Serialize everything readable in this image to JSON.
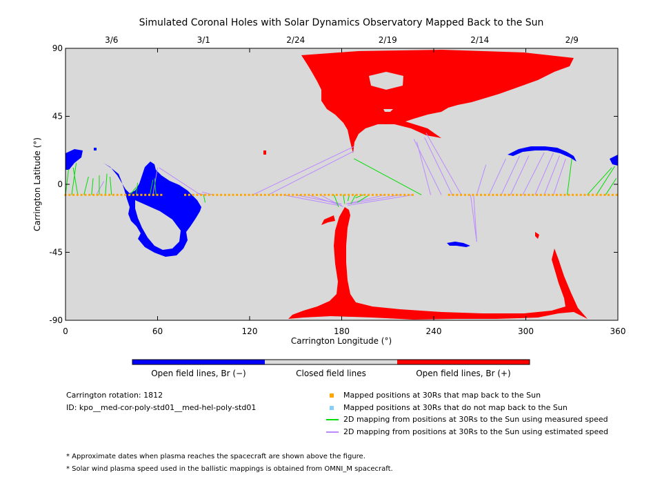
{
  "chart_data": {
    "type": "map",
    "title": "Simulated Coronal Holes with Solar Dynamics Observatory Mapped Back to the Sun",
    "xlabel": "Carrington Longitude (°)",
    "ylabel": "Carrington Latitude (°)",
    "xlim": [
      0,
      360
    ],
    "ylim": [
      -90,
      90
    ],
    "x_ticks": [
      "0",
      "60",
      "120",
      "180",
      "240",
      "300",
      "360"
    ],
    "y_ticks": [
      "90",
      "45",
      "0",
      "-45",
      "-90"
    ],
    "top_axis_dates": [
      {
        "label": "3/6",
        "lon": 30
      },
      {
        "label": "3/1",
        "lon": 90
      },
      {
        "label": "2/24",
        "lon": 150
      },
      {
        "label": "2/19",
        "lon": 210
      },
      {
        "label": "2/14",
        "lon": 270
      },
      {
        "label": "2/9",
        "lon": 330
      }
    ],
    "colors": {
      "background": "#d9d9d9",
      "negative": "#0000ff",
      "positive": "#ff0000",
      "mapped": "#ffa500",
      "not_mapped": "#87cefa",
      "measured_line": "#00dd00",
      "estimated_line": "#bb88ff"
    },
    "mapped_positions_lat": -7,
    "mapped_positions_lon_ranges": [
      [
        0,
        63
      ],
      [
        78,
        228
      ],
      [
        250,
        360
      ]
    ],
    "measured_mappings": [
      [
        0,
        -7,
        2,
        10
      ],
      [
        4,
        -7,
        7,
        14
      ],
      [
        8,
        -7,
        5,
        11
      ],
      [
        12,
        -7,
        15,
        5
      ],
      [
        17,
        -7,
        18,
        4
      ],
      [
        22,
        -7,
        22,
        6
      ],
      [
        26,
        -7,
        27,
        7
      ],
      [
        30,
        -7,
        29,
        5
      ],
      [
        42,
        -7,
        46,
        -2
      ],
      [
        46,
        -7,
        47,
        1
      ],
      [
        55,
        -7,
        57,
        3
      ],
      [
        59,
        -7,
        58,
        4
      ],
      [
        90,
        -7,
        91,
        -12
      ],
      [
        175,
        -7,
        178,
        -15
      ],
      [
        181,
        -7,
        182,
        -13
      ],
      [
        185,
        -7,
        184,
        -11
      ],
      [
        189,
        -7,
        186,
        -13
      ],
      [
        194,
        -7,
        189,
        -9
      ],
      [
        198,
        -7,
        190,
        -12
      ],
      [
        232,
        -7,
        188,
        17
      ],
      [
        327,
        -7,
        330,
        17
      ],
      [
        340,
        -7,
        356,
        11
      ],
      [
        346,
        -7,
        358,
        12
      ],
      [
        352,
        -7,
        359,
        4
      ]
    ],
    "estimated_mappings": [
      [
        20,
        -7,
        25,
        2
      ],
      [
        57,
        -7,
        60,
        11
      ],
      [
        88,
        -7,
        61,
        11
      ],
      [
        92,
        -7,
        86,
        -6
      ],
      [
        96,
        -7,
        89,
        -5
      ],
      [
        122,
        -7,
        188,
        25
      ],
      [
        132,
        -7,
        188,
        22
      ],
      [
        142,
        -7,
        178,
        -14
      ],
      [
        150,
        -7,
        180,
        -13
      ],
      [
        158,
        -7,
        180,
        -14
      ],
      [
        166,
        -7,
        181,
        -15
      ],
      [
        208,
        -7,
        183,
        -13
      ],
      [
        218,
        -7,
        184,
        -13
      ],
      [
        226,
        -7,
        184,
        -14
      ],
      [
        238,
        -7,
        229,
        28
      ],
      [
        245,
        -7,
        227,
        30
      ],
      [
        252,
        -7,
        234,
        31
      ],
      [
        258,
        -7,
        235,
        34
      ],
      [
        268,
        -7,
        274,
        13
      ],
      [
        276,
        -7,
        287,
        17
      ],
      [
        284,
        -7,
        296,
        19
      ],
      [
        290,
        -7,
        302,
        19
      ],
      [
        298,
        -7,
        312,
        21
      ],
      [
        306,
        -7,
        318,
        21
      ],
      [
        312,
        -7,
        322,
        19
      ],
      [
        318,
        -7,
        326,
        17
      ],
      [
        264,
        -7,
        268,
        -38
      ],
      [
        266,
        -7,
        268,
        -38
      ]
    ],
    "colorbar": [
      "Open field lines, Br (−)",
      "Closed field lines",
      "Open field lines, Br (+)"
    ],
    "legend": [
      "Mapped positions at 30Rs that map back to the Sun",
      "Mapped positions at 30Rs that do not map back to the Sun",
      "2D mapping from positions at 30Rs to the Sun using measured speed",
      "2D mapping from positions at 30Rs to the Sun using estimated speed"
    ],
    "info": {
      "rotation": "Carrington rotation: 1812",
      "id": "ID: kpo__med-cor-poly-std01__med-hel-poly-std01"
    },
    "notes": [
      "* Approximate dates when plasma reaches the spacecraft are shown above the figure.",
      "* Solar wind plasma speed used in the ballistic mappings is obtained from OMNI_M spacecraft."
    ]
  }
}
